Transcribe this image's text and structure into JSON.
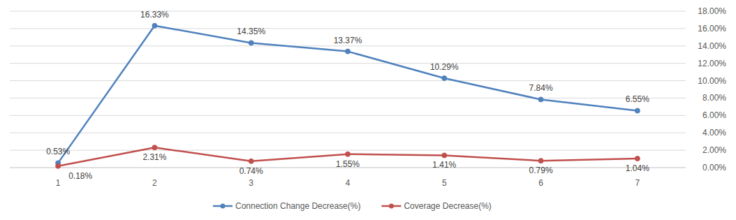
{
  "chart_data": {
    "type": "line",
    "categories": [
      "1",
      "2",
      "3",
      "4",
      "5",
      "6",
      "7"
    ],
    "series": [
      {
        "name": "Connection Change Decrease(%)",
        "color": "#4f81bd",
        "marker": "circle",
        "values": [
          0.53,
          16.33,
          14.35,
          13.37,
          10.29,
          7.84,
          6.55
        ],
        "value_labels": [
          "0.53%",
          "16.33%",
          "14.35%",
          "13.37%",
          "10.29%",
          "7.84%",
          "6.55%"
        ]
      },
      {
        "name": "Coverage Decrease(%)",
        "color": "#c0504d",
        "marker": "circle",
        "values": [
          0.18,
          2.31,
          0.74,
          1.55,
          1.41,
          0.79,
          1.04
        ],
        "value_labels": [
          "0.18%",
          "2.31%",
          "0.74%",
          "1.55%",
          "1.41%",
          "0.79%",
          "1.04%"
        ]
      }
    ],
    "ylim": [
      0,
      18
    ],
    "yticks": [
      {
        "value": 0,
        "label": "0.00%"
      },
      {
        "value": 2,
        "label": "2.00%"
      },
      {
        "value": 4,
        "label": "4.00%"
      },
      {
        "value": 6,
        "label": "6.00%"
      },
      {
        "value": 8,
        "label": "8.00%"
      },
      {
        "value": 10,
        "label": "10.00%"
      },
      {
        "value": 12,
        "label": "12.00%"
      },
      {
        "value": 14,
        "label": "14.00%"
      },
      {
        "value": 16,
        "label": "16.00%"
      },
      {
        "value": 18,
        "label": "18.00%"
      }
    ],
    "grid": true,
    "data_labels": true,
    "legend": "bottom"
  }
}
